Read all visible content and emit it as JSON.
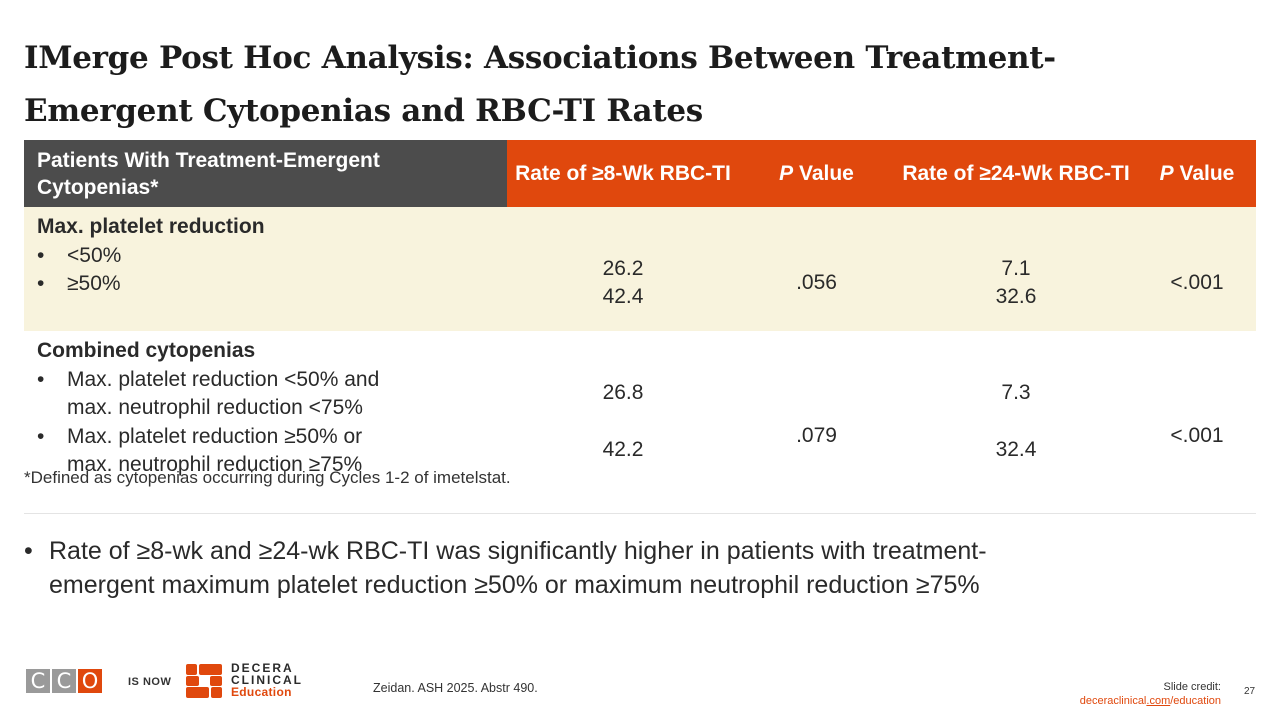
{
  "title": {
    "line1": "IMerge Post Hoc Analysis: Associations Between Treatment-",
    "line2": "Emergent Cytopenias and RBC-TI Rates"
  },
  "table": {
    "headers": {
      "col1": "Patients With Treatment-Emergent Cytopenias*",
      "col2": "Rate of ≥8-Wk RBC-TI",
      "col3_italic": "P",
      "col3_rest": " Value",
      "col4": "Rate of ≥24-Wk RBC-TI",
      "col5_italic": "P",
      "col5_rest": " Value"
    },
    "group1": {
      "label": "Max. platelet reduction",
      "rows": [
        "<50%",
        "≥50%"
      ],
      "rate8": [
        "26.2",
        "42.4"
      ],
      "p8": ".056",
      "rate24": [
        "7.1",
        "32.6"
      ],
      "p24": "<.001"
    },
    "group2": {
      "label": "Combined cytopenias",
      "rows": [
        [
          "Max. platelet reduction <50% and",
          "max. neutrophil reduction <75%"
        ],
        [
          "Max. platelet reduction ≥50% or",
          "max. neutrophil reduction ≥75%"
        ]
      ],
      "rate8": [
        "26.8",
        "42.2"
      ],
      "p8": ".079",
      "rate24": [
        "7.3",
        "32.4"
      ],
      "p24": "<.001"
    },
    "bullet_char": "•"
  },
  "footnote": "*Defined as cytopenias occurring during Cycles 1-2 of imetelstat.",
  "bullet": {
    "char": "•",
    "line1": "Rate of ≥8-wk and ≥24-wk RBC-TI was significantly higher in patients with treatment-",
    "line2": "emergent maximum platelet reduction ≥50% or maximum neutrophil reduction ≥75%"
  },
  "footer": {
    "logo_letters": [
      "C",
      "C",
      "O"
    ],
    "logo_colors": [
      "#9a9a9a",
      "#9a9a9a",
      "#e0480d"
    ],
    "is_now": "IS NOW",
    "brand_line1": "DECERA",
    "brand_line2": "CLINICAL",
    "brand_line3": "Education",
    "brand_color": "#e0480d",
    "reference": "Zeidan. ASH 2025. Abstr 490.",
    "credit_label": "Slide credit:",
    "credit_link_pre": "deceraclinical",
    "credit_link_mid": ".com",
    "credit_link_post": "/education",
    "page_number": "27"
  }
}
